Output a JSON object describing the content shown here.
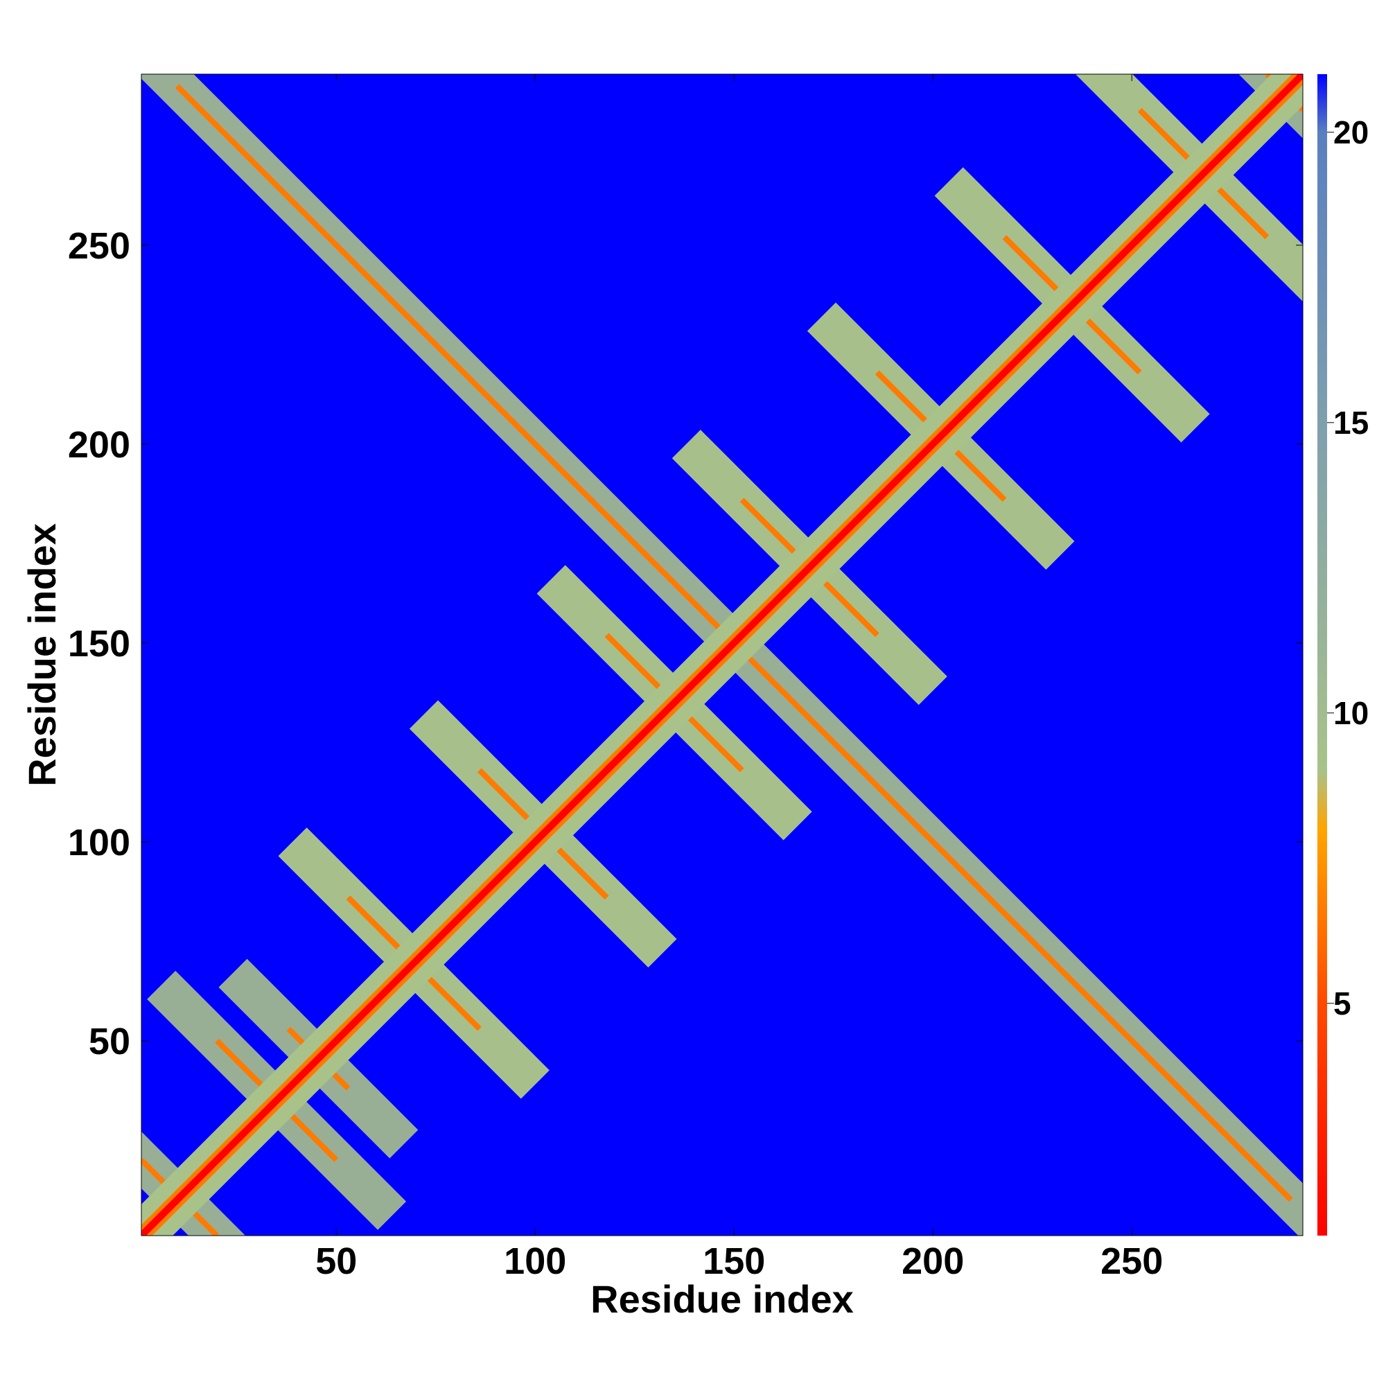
{
  "chart_data": {
    "type": "heatmap",
    "title": "",
    "xlabel": "Residue index",
    "ylabel": "Residue index",
    "xlim": [
      1,
      293
    ],
    "ylim": [
      1,
      293
    ],
    "xticks": [
      50,
      100,
      150,
      200,
      250
    ],
    "yticks": [
      50,
      100,
      150,
      200,
      250
    ],
    "colorbar": {
      "range": [
        1,
        21
      ],
      "ticks": [
        5,
        10,
        15,
        20
      ],
      "stops": [
        {
          "value": 1,
          "color": "#ff0000"
        },
        {
          "value": 5,
          "color": "#ff4a00"
        },
        {
          "value": 8,
          "color": "#ffa500"
        },
        {
          "value": 9,
          "color": "#a9c28a"
        },
        {
          "value": 15,
          "color": "#7f9fae"
        },
        {
          "value": 20,
          "color": "#5a7fc0"
        },
        {
          "value": 21,
          "color": "#0000ff"
        }
      ]
    },
    "background_color": "#0000ff",
    "description_of_matrix": "Symmetric residue-residue distance map; red diagonal, contact ridges",
    "features": {
      "diagonal": {
        "start": 1,
        "end": 293
      },
      "antiparallel_contacts": [
        [
          20,
          1
        ],
        [
          20,
          50
        ],
        [
          53,
          86
        ],
        [
          53,
          38
        ],
        [
          86,
          118
        ],
        [
          86,
          53
        ],
        [
          118,
          152
        ],
        [
          118,
          86
        ],
        [
          152,
          186
        ],
        [
          152,
          118
        ],
        [
          186,
          218
        ],
        [
          186,
          152
        ],
        [
          218,
          252
        ],
        [
          218,
          186
        ],
        [
          252,
          284
        ],
        [
          252,
          218
        ],
        [
          284,
          293
        ],
        [
          284,
          252
        ],
        [
          10,
          290
        ]
      ]
    }
  }
}
